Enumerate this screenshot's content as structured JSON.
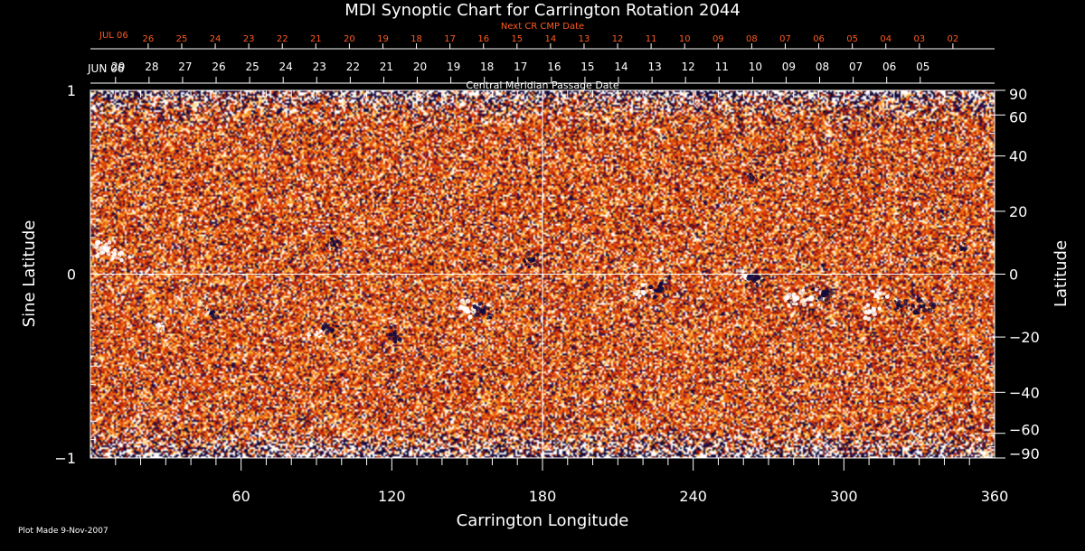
{
  "chart_data": {
    "type": "heatmap",
    "title": "MDI Synoptic Chart for Carrington Rotation 2044",
    "xlabel": "Carrington Longitude",
    "ylabel_left": "Sine Latitude",
    "ylabel_right": "Latitude",
    "xlim": [
      0,
      360
    ],
    "ylim": [
      -1,
      1
    ],
    "x_ticks": [
      60,
      120,
      180,
      240,
      300,
      360
    ],
    "y_ticks_left": [
      {
        "value": 1,
        "label": "1"
      },
      {
        "value": 0,
        "label": "0"
      },
      {
        "value": -1,
        "label": "−1"
      }
    ],
    "y_ticks_right": [
      90,
      60,
      40,
      20,
      0,
      -20,
      -40,
      -60,
      -90
    ],
    "cmp_axis_label": "Central Meridian Passage Date",
    "cmp_month_label": "JUN 06",
    "cmp_dates": [
      "29",
      "28",
      "27",
      "26",
      "25",
      "24",
      "23",
      "22",
      "21",
      "20",
      "19",
      "18",
      "17",
      "16",
      "15",
      "14",
      "13",
      "12",
      "11",
      "10",
      "09",
      "08",
      "07",
      "06",
      "05"
    ],
    "cmp_dates_start_longitude": 10,
    "next_cr_label": "Next CR CMP Date",
    "next_cr_month_label": "JUL 06",
    "next_cr_dates": [
      "26",
      "25",
      "24",
      "23",
      "22",
      "21",
      "20",
      "19",
      "18",
      "17",
      "16",
      "15",
      "14",
      "13",
      "12",
      "11",
      "10",
      "09",
      "08",
      "07",
      "06",
      "05",
      "04",
      "03",
      "02"
    ],
    "next_cr_dates_start_longitude": 23,
    "active_regions": [
      {
        "lon": 6,
        "sinlat": 0.14,
        "polarity": "positive",
        "strength": 1.0
      },
      {
        "lon": 12,
        "sinlat": 0.1,
        "polarity": "positive",
        "strength": 0.6
      },
      {
        "lon": 150,
        "sinlat": -0.19,
        "polarity": "positive",
        "strength": 1.0
      },
      {
        "lon": 157,
        "sinlat": -0.2,
        "polarity": "negative",
        "strength": 1.0
      },
      {
        "lon": 176,
        "sinlat": 0.08,
        "polarity": "negative",
        "strength": 0.7
      },
      {
        "lon": 97,
        "sinlat": 0.16,
        "polarity": "negative",
        "strength": 0.5
      },
      {
        "lon": 48,
        "sinlat": -0.21,
        "polarity": "negative",
        "strength": 0.6
      },
      {
        "lon": 96,
        "sinlat": -0.3,
        "polarity": "negative",
        "strength": 0.7
      },
      {
        "lon": 120,
        "sinlat": -0.33,
        "polarity": "negative",
        "strength": 0.7
      },
      {
        "lon": 90,
        "sinlat": -0.33,
        "polarity": "positive",
        "strength": 0.4
      },
      {
        "lon": 28,
        "sinlat": -0.28,
        "polarity": "positive",
        "strength": 0.4
      },
      {
        "lon": 220,
        "sinlat": -0.1,
        "polarity": "positive",
        "strength": 0.7
      },
      {
        "lon": 225,
        "sinlat": -0.09,
        "polarity": "negative",
        "strength": 0.8
      },
      {
        "lon": 261,
        "sinlat": -0.02,
        "polarity": "positive",
        "strength": 0.9
      },
      {
        "lon": 265,
        "sinlat": -0.03,
        "polarity": "negative",
        "strength": 0.9
      },
      {
        "lon": 281,
        "sinlat": -0.13,
        "polarity": "positive",
        "strength": 1.0
      },
      {
        "lon": 287,
        "sinlat": -0.13,
        "polarity": "positive",
        "strength": 0.9
      },
      {
        "lon": 292,
        "sinlat": -0.11,
        "polarity": "negative",
        "strength": 1.0
      },
      {
        "lon": 310,
        "sinlat": -0.2,
        "polarity": "positive",
        "strength": 0.8
      },
      {
        "lon": 314,
        "sinlat": -0.11,
        "polarity": "positive",
        "strength": 0.6
      },
      {
        "lon": 322,
        "sinlat": -0.17,
        "polarity": "negative",
        "strength": 0.7
      },
      {
        "lon": 331,
        "sinlat": -0.17,
        "polarity": "negative",
        "strength": 1.0
      },
      {
        "lon": 347,
        "sinlat": 0.14,
        "polarity": "negative",
        "strength": 0.5
      },
      {
        "lon": 264,
        "sinlat": 0.53,
        "polarity": "negative",
        "strength": 0.4
      }
    ],
    "colors": {
      "background": "#000000",
      "mean_field": "#e45010",
      "positive": "#ffffff",
      "negative": "#140a3c",
      "axes": "#ffffff",
      "next_cr": "#ff5a1e",
      "footer": "#ffffff"
    }
  },
  "footer": {
    "plot_made": "Plot Made  9-Nov-2007"
  }
}
